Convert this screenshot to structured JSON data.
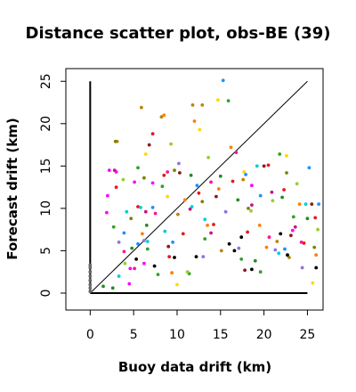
{
  "chart_data": {
    "type": "scatter",
    "title": "Distance scatter plot, obs-BE (39)",
    "xlabel": "Buoy data drift (km)",
    "ylabel": "Forecast drift (km)",
    "xlim": [
      -2.8,
      26.8
    ],
    "ylim": [
      -2.0,
      26.5
    ],
    "x_ticks": [
      "0",
      "5",
      "10",
      "15",
      "20",
      "25"
    ],
    "y_ticks": [
      "0",
      "5",
      "10",
      "15",
      "20",
      "25"
    ],
    "grid": false,
    "legend": "none",
    "reference_lines": [
      {
        "kind": "identity",
        "x": [
          0,
          25
        ],
        "y": [
          0,
          25
        ],
        "color": "#000000"
      },
      {
        "kind": "axis",
        "x": [
          0,
          25
        ],
        "y": [
          0,
          0
        ],
        "color": "#000000"
      },
      {
        "kind": "axis",
        "x": [
          0,
          0
        ],
        "y": [
          0,
          25
        ],
        "color": "#000000"
      }
    ],
    "series": [
      {
        "color": "#e31a1c",
        "points": [
          [
            7.2,
            18.8
          ],
          [
            8.5,
            13.9
          ],
          [
            10.7,
            7.0
          ],
          [
            14.2,
            8.1
          ],
          [
            16.4,
            13.2
          ],
          [
            20.5,
            15.1
          ],
          [
            22.3,
            12.2
          ],
          [
            24.6,
            5.9
          ],
          [
            5.5,
            10.2
          ],
          [
            12.5,
            11.8
          ],
          [
            18.1,
            7.2
          ],
          [
            3.0,
            12.5
          ],
          [
            9.1,
            4.3
          ],
          [
            25.9,
            8.9
          ]
        ]
      },
      {
        "color": "#33a02c",
        "points": [
          [
            5.5,
            14.8
          ],
          [
            7.8,
            2.2
          ],
          [
            11.4,
            2.3
          ],
          [
            13.2,
            6.4
          ],
          [
            15.9,
            22.7
          ],
          [
            17.4,
            4.0
          ],
          [
            21.8,
            16.4
          ],
          [
            23.4,
            9.0
          ],
          [
            8.3,
            12.6
          ],
          [
            2.7,
            7.8
          ],
          [
            19.6,
            2.5
          ],
          [
            6.6,
            5.2
          ]
        ]
      },
      {
        "color": "#ff00ff",
        "points": [
          [
            2.2,
            14.5
          ],
          [
            3.0,
            14.3
          ],
          [
            4.5,
            1.1
          ],
          [
            5.1,
            13.1
          ],
          [
            6.2,
            3.5
          ],
          [
            2.0,
            11.5
          ],
          [
            7.2,
            13.0
          ],
          [
            4.6,
            2.9
          ],
          [
            18.6,
            12.7
          ],
          [
            1.9,
            9.5
          ],
          [
            23.3,
            7.4
          ]
        ]
      },
      {
        "color": "#ff7f00",
        "points": [
          [
            8.5,
            21.0
          ],
          [
            10.9,
            11.0
          ],
          [
            12.0,
            20.3
          ],
          [
            13.5,
            8.0
          ],
          [
            16.2,
            17.2
          ],
          [
            19.5,
            8.0
          ],
          [
            20.3,
            5.4
          ],
          [
            24.1,
            10.5
          ],
          [
            26.0,
            4.5
          ],
          [
            6.0,
            7.0
          ],
          [
            14.8,
            12.3
          ],
          [
            9.4,
            2.4
          ]
        ]
      },
      {
        "color": "#b8860b",
        "points": [
          [
            3.1,
            17.9
          ],
          [
            8.2,
            20.8
          ],
          [
            11.8,
            22.2
          ],
          [
            12.9,
            22.2
          ],
          [
            15.1,
            5.0
          ],
          [
            21.5,
            6.1
          ],
          [
            22.9,
            4.2
          ],
          [
            5.9,
            21.9
          ],
          [
            17.6,
            13.4
          ],
          [
            10.1,
            9.3
          ]
        ]
      },
      {
        "color": "#1e90ff",
        "points": [
          [
            5.5,
            5.8
          ],
          [
            7.2,
            10.1
          ],
          [
            9.5,
            6.0
          ],
          [
            15.3,
            25.1
          ],
          [
            17.9,
            14.0
          ],
          [
            19.6,
            11.5
          ],
          [
            22.4,
            5.2
          ],
          [
            25.2,
            14.8
          ],
          [
            3.9,
            7.1
          ],
          [
            12.3,
            12.7
          ],
          [
            26.3,
            10.5
          ]
        ]
      },
      {
        "color": "#ffd700",
        "points": [
          [
            8.9,
            11.4
          ],
          [
            10.0,
            1.0
          ],
          [
            12.6,
            19.3
          ],
          [
            14.7,
            22.8
          ],
          [
            17.7,
            14.3
          ],
          [
            22.6,
            16.2
          ],
          [
            25.6,
            1.2
          ],
          [
            6.4,
            16.4
          ]
        ]
      },
      {
        "color": "#9acd32",
        "points": [
          [
            3.8,
            13.4
          ],
          [
            9.3,
            17.6
          ],
          [
            11.2,
            2.5
          ],
          [
            13.6,
            16.0
          ],
          [
            18.5,
            9.7
          ],
          [
            21.0,
            10.9
          ],
          [
            23.8,
            12.9
          ],
          [
            26.2,
            7.5
          ],
          [
            4.0,
            3.5
          ]
        ]
      },
      {
        "color": "#8b1a1a",
        "points": [
          [
            10.3,
            14.2
          ],
          [
            14.5,
            11.4
          ],
          [
            17.8,
            2.7
          ],
          [
            20.0,
            15.0
          ],
          [
            23.1,
            6.8
          ],
          [
            25.5,
            10.5
          ],
          [
            6.8,
            17.5
          ],
          [
            9.0,
            5.5
          ]
        ]
      },
      {
        "color": "#9370db",
        "points": [
          [
            6.2,
            6.2
          ],
          [
            10.2,
            15.3
          ],
          [
            15.6,
            9.6
          ],
          [
            17.1,
            5.3
          ],
          [
            21.3,
            5.1
          ],
          [
            24.4,
            3.0
          ],
          [
            13.0,
            4.3
          ],
          [
            3.3,
            6.0
          ]
        ]
      },
      {
        "color": "#000000",
        "points": [
          [
            9.7,
            4.2
          ],
          [
            12.2,
            4.3
          ],
          [
            16.0,
            5.8
          ],
          [
            16.6,
            5.0
          ],
          [
            17.4,
            6.6
          ],
          [
            18.6,
            2.8
          ],
          [
            21.9,
            7.0
          ],
          [
            22.7,
            4.5
          ],
          [
            26.0,
            3.0
          ],
          [
            5.3,
            4.0
          ],
          [
            7.4,
            3.2
          ]
        ]
      },
      {
        "color": "#00ced1",
        "points": [
          [
            3.3,
            2.0
          ],
          [
            4.2,
            9.6
          ],
          [
            5.8,
            10.1
          ],
          [
            6.6,
            6.1
          ],
          [
            8.6,
            7.3
          ],
          [
            13.2,
            8.7
          ],
          [
            19.2,
            15.0
          ],
          [
            21.7,
            4.7
          ],
          [
            24.8,
            10.5
          ],
          [
            11.7,
            10.2
          ]
        ]
      },
      {
        "color": "#228b22",
        "points": [
          [
            2.6,
            0.6
          ],
          [
            4.8,
            5.3
          ],
          [
            6.5,
            8.0
          ],
          [
            11.6,
            13.9
          ],
          [
            15.0,
            13.8
          ],
          [
            19.0,
            3.8
          ],
          [
            22.1,
            11.3
          ],
          [
            25.0,
            8.8
          ],
          [
            17.0,
            11.0
          ],
          [
            1.5,
            0.8
          ]
        ]
      },
      {
        "color": "#ff1493",
        "points": [
          [
            3.9,
            4.9
          ],
          [
            5.1,
            2.9
          ],
          [
            8.9,
            14.3
          ],
          [
            13.9,
            13.1
          ],
          [
            16.8,
            16.6
          ],
          [
            20.6,
            6.6
          ],
          [
            24.3,
            6.0
          ],
          [
            7.5,
            9.4
          ]
        ]
      },
      {
        "color": "#808000",
        "points": [
          [
            2.9,
            17.9
          ],
          [
            9.7,
            14.5
          ],
          [
            12.9,
            10.8
          ],
          [
            18.2,
            10.0
          ],
          [
            22.6,
            14.2
          ],
          [
            25.8,
            5.4
          ],
          [
            6.2,
            13.6
          ],
          [
            4.7,
            8.8
          ]
        ]
      },
      {
        "color": "#c71585",
        "points": [
          [
            6.4,
            9.6
          ],
          [
            11.5,
            9.9
          ],
          [
            13.9,
            7.1
          ],
          [
            18.6,
            10.4
          ],
          [
            23.6,
            7.8
          ],
          [
            20.9,
            11.9
          ],
          [
            2.8,
            14.5
          ]
        ]
      },
      {
        "color": "#696969",
        "points": [
          [
            0.0,
            0.2
          ],
          [
            0.0,
            0.6
          ],
          [
            0.0,
            1.0
          ],
          [
            0.0,
            1.5
          ],
          [
            0.0,
            2.0
          ],
          [
            0.0,
            2.5
          ],
          [
            0.0,
            3.0
          ],
          [
            0.0,
            3.3
          ]
        ]
      }
    ]
  }
}
